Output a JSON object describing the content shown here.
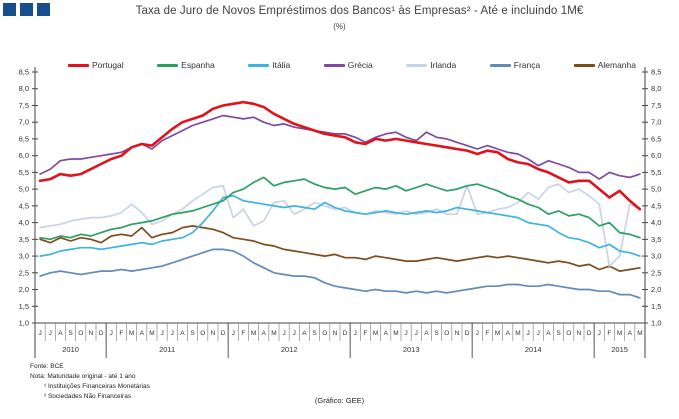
{
  "header": {
    "title": "Taxa de Juro de Novos Empréstimos dos Bancos¹ às Empresas² - Até e incluindo 1M€",
    "subtitle": "(%)"
  },
  "footnotes": {
    "source": "Fonte: BCE",
    "note": "Nota: Maturidade original - até 1 ano",
    "note1": "¹ Instituições Financeiras Monetárias",
    "note2": "² Sociedades Não Financeiras"
  },
  "credit": "(Gráfico: GEE)",
  "chart_data": {
    "type": "line",
    "title": "Taxa de Juro de Novos Empréstimos dos Bancos¹ às Empresas² - Até e incluindo 1M€",
    "subtitle": "(%)",
    "grid": false,
    "legend_position": "top",
    "y_axis": {
      "min": 1.0,
      "max": 8.5,
      "step": 0.5,
      "tick_labels": [
        "1,0",
        "1,5",
        "2,0",
        "2,5",
        "3,0",
        "3,5",
        "4,0",
        "4,5",
        "5,0",
        "5,5",
        "6,0",
        "6,5",
        "7,0",
        "7,5",
        "8,0",
        "8,5"
      ]
    },
    "x_axis": {
      "years": [
        {
          "label": "2010",
          "months": [
            "J",
            "J",
            "A",
            "S",
            "O",
            "N",
            "D"
          ]
        },
        {
          "label": "2011",
          "months": [
            "J",
            "F",
            "M",
            "A",
            "M",
            "J",
            "J",
            "A",
            "S",
            "O",
            "N",
            "D"
          ]
        },
        {
          "label": "2012",
          "months": [
            "J",
            "F",
            "M",
            "A",
            "M",
            "J",
            "J",
            "A",
            "S",
            "O",
            "N",
            "D"
          ]
        },
        {
          "label": "2013",
          "months": [
            "J",
            "F",
            "M",
            "A",
            "M",
            "J",
            "J",
            "A",
            "S",
            "O",
            "N",
            "D"
          ]
        },
        {
          "label": "2014",
          "months": [
            "J",
            "F",
            "M",
            "A",
            "M",
            "J",
            "J",
            "A",
            "S",
            "O",
            "N",
            "D"
          ]
        },
        {
          "label": "2015",
          "months": [
            "J",
            "F",
            "M",
            "A",
            "M"
          ]
        }
      ]
    },
    "series": [
      {
        "name": "Portugal",
        "color": "#e0121c",
        "values": [
          5.25,
          5.3,
          5.45,
          5.4,
          5.45,
          5.6,
          5.75,
          5.9,
          6.0,
          6.25,
          6.35,
          6.3,
          6.55,
          6.8,
          7.0,
          7.1,
          7.2,
          7.4,
          7.5,
          7.55,
          7.6,
          7.55,
          7.45,
          7.25,
          7.1,
          6.95,
          6.85,
          6.75,
          6.65,
          6.6,
          6.55,
          6.4,
          6.35,
          6.5,
          6.45,
          6.5,
          6.45,
          6.4,
          6.35,
          6.3,
          6.25,
          6.2,
          6.15,
          6.05,
          6.15,
          6.1,
          5.9,
          5.8,
          5.75,
          5.6,
          5.5,
          5.35,
          5.2,
          5.25,
          5.25,
          5.0,
          4.75,
          4.95,
          4.65,
          4.4
        ]
      },
      {
        "name": "Espanha",
        "color": "#2c9f62",
        "values": [
          3.55,
          3.5,
          3.6,
          3.55,
          3.65,
          3.6,
          3.7,
          3.8,
          3.85,
          3.95,
          4.0,
          4.05,
          4.15,
          4.25,
          4.3,
          4.35,
          4.45,
          4.55,
          4.65,
          4.9,
          5.0,
          5.2,
          5.35,
          5.1,
          5.2,
          5.25,
          5.3,
          5.15,
          5.05,
          5.0,
          5.05,
          4.85,
          4.95,
          5.05,
          5.0,
          5.1,
          4.95,
          5.05,
          5.15,
          5.05,
          4.95,
          5.0,
          5.1,
          5.15,
          5.05,
          4.95,
          4.8,
          4.7,
          4.55,
          4.45,
          4.25,
          4.35,
          4.2,
          4.25,
          4.15,
          3.9,
          4.0,
          3.7,
          3.65,
          3.55
        ]
      },
      {
        "name": "Itália",
        "color": "#3fb3e0",
        "values": [
          3.0,
          3.05,
          3.15,
          3.2,
          3.25,
          3.25,
          3.2,
          3.25,
          3.3,
          3.35,
          3.4,
          3.35,
          3.45,
          3.5,
          3.55,
          3.7,
          4.0,
          4.35,
          4.75,
          4.8,
          4.65,
          4.6,
          4.55,
          4.5,
          4.45,
          4.5,
          4.45,
          4.4,
          4.6,
          4.45,
          4.35,
          4.3,
          4.25,
          4.3,
          4.35,
          4.3,
          4.25,
          4.3,
          4.35,
          4.3,
          4.35,
          4.45,
          4.4,
          4.35,
          4.3,
          4.25,
          4.2,
          4.15,
          4.0,
          3.95,
          3.9,
          3.7,
          3.55,
          3.5,
          3.4,
          3.25,
          3.35,
          3.15,
          3.1,
          3.0
        ]
      },
      {
        "name": "Grécia",
        "color": "#7d4a9e",
        "values": [
          5.45,
          5.6,
          5.85,
          5.9,
          5.9,
          5.95,
          6.0,
          6.05,
          6.1,
          6.25,
          6.35,
          6.2,
          6.45,
          6.6,
          6.75,
          6.9,
          7.0,
          7.1,
          7.2,
          7.15,
          7.1,
          7.15,
          7.0,
          6.9,
          6.95,
          6.85,
          6.8,
          6.75,
          6.7,
          6.65,
          6.65,
          6.55,
          6.4,
          6.55,
          6.65,
          6.7,
          6.55,
          6.45,
          6.7,
          6.55,
          6.5,
          6.4,
          6.3,
          6.2,
          6.3,
          6.2,
          6.1,
          6.05,
          5.9,
          5.7,
          5.85,
          5.75,
          5.65,
          5.5,
          5.5,
          5.3,
          5.5,
          5.4,
          5.35,
          5.45
        ]
      },
      {
        "name": "Irlanda",
        "color": "#c9d3e6",
        "values": [
          3.85,
          3.9,
          3.95,
          4.05,
          4.1,
          4.15,
          4.15,
          4.2,
          4.3,
          4.55,
          4.3,
          3.95,
          4.05,
          4.25,
          4.4,
          4.65,
          4.85,
          5.05,
          5.1,
          4.15,
          4.4,
          3.9,
          4.05,
          4.6,
          4.65,
          4.25,
          4.4,
          4.6,
          4.5,
          4.4,
          4.45,
          4.3,
          4.25,
          4.35,
          4.3,
          4.25,
          4.35,
          4.25,
          4.3,
          4.4,
          4.25,
          4.25,
          5.1,
          4.25,
          4.3,
          4.4,
          4.45,
          4.6,
          4.9,
          4.7,
          5.05,
          5.15,
          4.9,
          5.0,
          4.8,
          4.55,
          2.7,
          3.0,
          4.55,
          4.4
        ]
      },
      {
        "name": "França",
        "color": "#618bb9",
        "values": [
          2.4,
          2.5,
          2.55,
          2.5,
          2.45,
          2.5,
          2.55,
          2.55,
          2.6,
          2.55,
          2.6,
          2.65,
          2.7,
          2.8,
          2.9,
          3.0,
          3.1,
          3.2,
          3.2,
          3.15,
          3.0,
          2.8,
          2.65,
          2.5,
          2.45,
          2.4,
          2.4,
          2.35,
          2.2,
          2.1,
          2.05,
          2.0,
          1.95,
          2.0,
          1.95,
          1.95,
          1.9,
          1.95,
          1.9,
          1.95,
          1.9,
          1.95,
          2.0,
          2.05,
          2.1,
          2.1,
          2.15,
          2.15,
          2.1,
          2.1,
          2.15,
          2.1,
          2.05,
          2.0,
          2.0,
          1.95,
          1.95,
          1.85,
          1.85,
          1.75
        ]
      },
      {
        "name": "Alemanha",
        "color": "#7e4b1d",
        "values": [
          3.5,
          3.4,
          3.55,
          3.45,
          3.55,
          3.5,
          3.4,
          3.6,
          3.65,
          3.6,
          3.85,
          3.55,
          3.65,
          3.7,
          3.85,
          3.9,
          3.85,
          3.8,
          3.7,
          3.55,
          3.5,
          3.45,
          3.35,
          3.3,
          3.2,
          3.15,
          3.1,
          3.05,
          3.0,
          3.05,
          2.95,
          2.95,
          2.9,
          3.0,
          2.95,
          2.9,
          2.85,
          2.85,
          2.9,
          2.95,
          2.9,
          2.85,
          2.9,
          2.95,
          3.0,
          2.95,
          3.0,
          2.95,
          2.9,
          2.85,
          2.8,
          2.85,
          2.8,
          2.7,
          2.75,
          2.6,
          2.7,
          2.55,
          2.6,
          2.65
        ]
      }
    ]
  }
}
